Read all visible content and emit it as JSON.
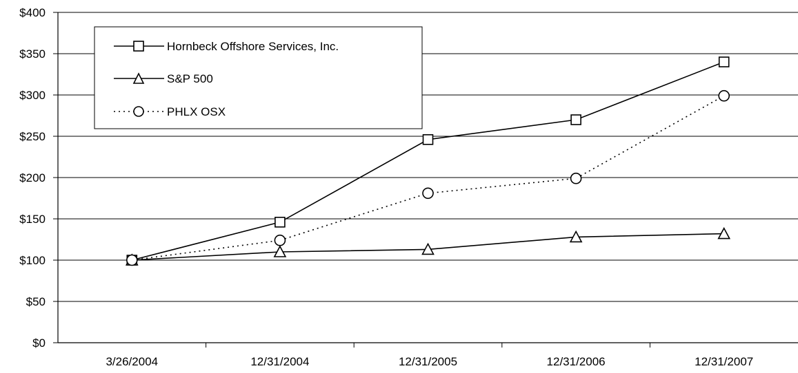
{
  "chart_data": {
    "type": "line",
    "categories": [
      "3/26/2004",
      "12/31/2004",
      "12/31/2005",
      "12/31/2006",
      "12/31/2007"
    ],
    "ylim": [
      0,
      400
    ],
    "yticks": [
      "$0",
      "$50",
      "$100",
      "$150",
      "$200",
      "$250",
      "$300",
      "$350",
      "$400"
    ],
    "grid": true,
    "legend_position": "top-left",
    "series": [
      {
        "name": "Hornbeck Offshore Services, Inc.",
        "marker": "square",
        "line": "solid",
        "color": "#000000",
        "values": [
          100,
          146,
          246,
          270,
          340
        ]
      },
      {
        "name": "S&P 500",
        "marker": "triangle",
        "line": "solid",
        "color": "#000000",
        "values": [
          100,
          110,
          113,
          128,
          132
        ]
      },
      {
        "name": "PHLX OSX",
        "marker": "circle",
        "line": "dotted",
        "color": "#000000",
        "values": [
          100,
          124,
          181,
          199,
          299
        ]
      }
    ]
  }
}
